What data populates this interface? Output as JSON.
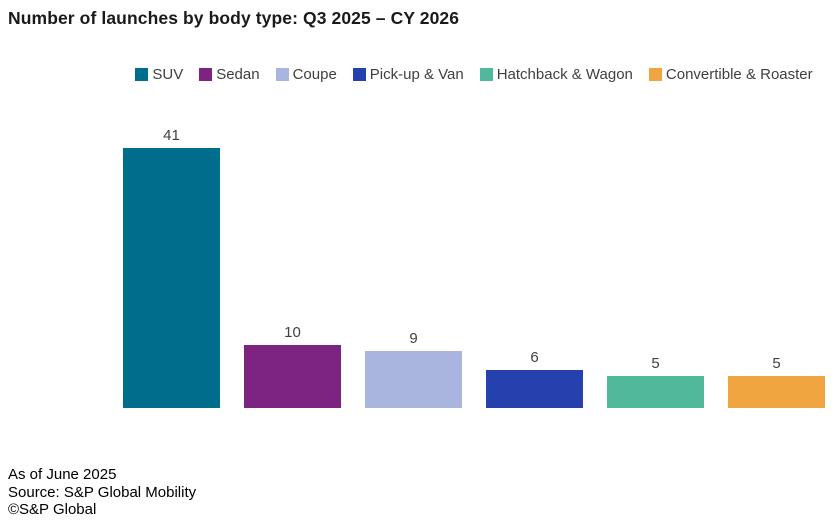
{
  "chart_data": {
    "type": "bar",
    "title": "Number of launches by body type: Q3 2025 – CY 2026",
    "categories": [
      "SUV",
      "Sedan",
      "Coupe",
      "Pick-up & Van",
      "Hatchback & Wagon",
      "Convertible & Roaster"
    ],
    "values": [
      41,
      10,
      9,
      6,
      5,
      5
    ],
    "colors": [
      "#006D8C",
      "#7D2382",
      "#A9B4DF",
      "#2441AD",
      "#50B99B",
      "#F0A541"
    ],
    "ylim": [
      0,
      41
    ],
    "xlabel": "",
    "ylabel": "",
    "grid": false,
    "axes_visible": false,
    "value_labels": true,
    "value_label_color": "#404040",
    "legend_position": "top-center",
    "legend_text_color": "#404040",
    "title_color": "#1a1a1a"
  },
  "footer": {
    "as_of": "As of June 2025",
    "source": "Source: S&P Global Mobility",
    "copyright": "©S&P Global"
  }
}
